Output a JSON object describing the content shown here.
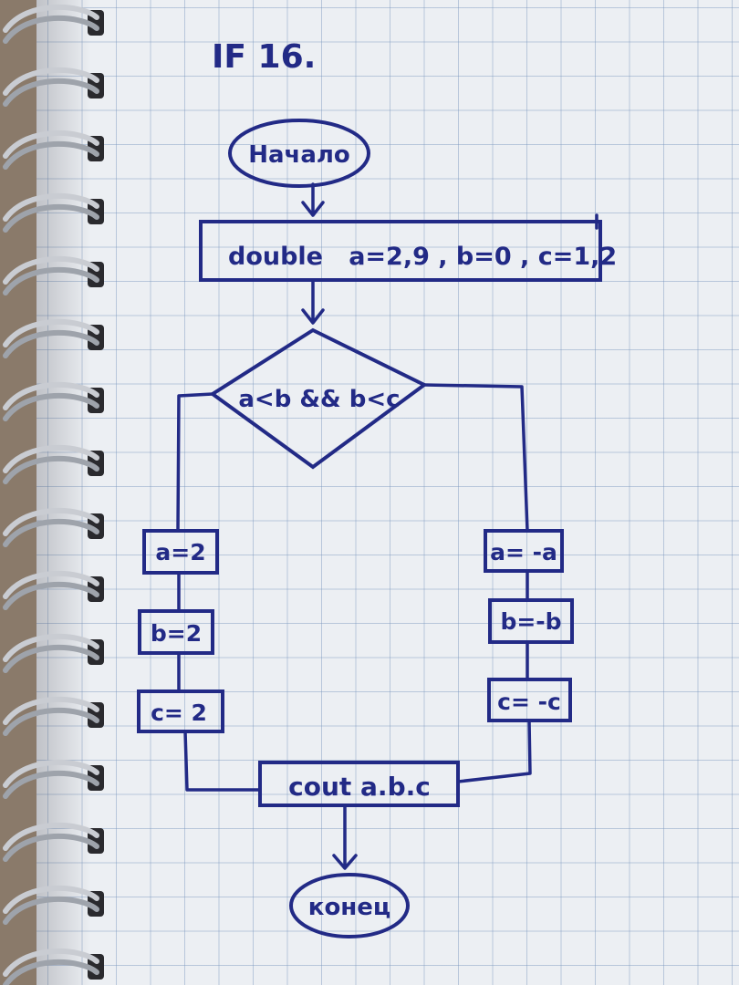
{
  "header": {
    "title": "IF 16."
  },
  "flowchart": {
    "start_label": "Начало",
    "declare_label": "double   a=2,9 , b=0 , c=1,2",
    "condition_label": "a<b && b<c",
    "left_branch": [
      "a=2",
      "b=2",
      "c= 2"
    ],
    "right_branch": [
      "a= -a",
      "b=-b",
      "c= -c"
    ],
    "output_label": "cout a.b.c",
    "end_label": "конец"
  },
  "colors": {
    "ink": "#222a86",
    "paper": "#eceff3",
    "grid": "#7896be"
  }
}
